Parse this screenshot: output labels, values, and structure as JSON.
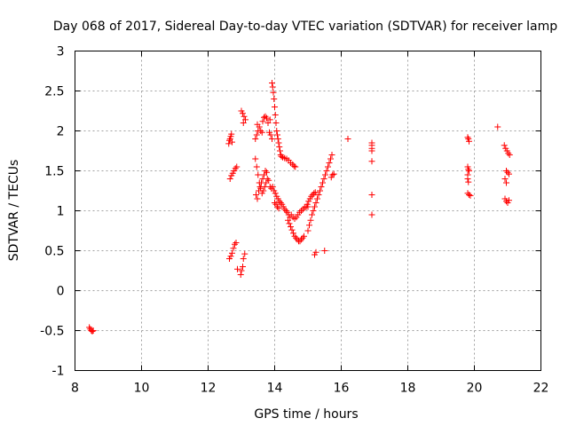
{
  "chart_data": {
    "type": "scatter",
    "title": "Day 068 of 2017, Sidereal Day-to-day VTEC variation (SDTVAR) for receiver lamp",
    "xlabel": "GPS time / hours",
    "ylabel": "SDTVAR / TECUs",
    "xlim": [
      8,
      22
    ],
    "ylim": [
      -1,
      3
    ],
    "xticks": [
      8,
      10,
      12,
      14,
      16,
      18,
      20,
      22
    ],
    "yticks": [
      -1,
      -0.5,
      0,
      0.5,
      1,
      1.5,
      2,
      2.5,
      3
    ],
    "xtick_labels": [
      "8",
      "10",
      "12",
      "14",
      "16",
      "18",
      "20",
      "22"
    ],
    "ytick_labels": [
      "-1",
      "-0.5",
      "0",
      "0.5",
      "1",
      "1.5",
      "2",
      "2.5",
      "3"
    ],
    "grid": true,
    "marker": "+",
    "color": "#ff0000",
    "series": [
      {
        "name": "SDTVAR",
        "points": [
          [
            8.43,
            -0.46
          ],
          [
            8.46,
            -0.48
          ],
          [
            8.49,
            -0.5
          ],
          [
            8.52,
            -0.51
          ],
          [
            8.55,
            -0.5
          ],
          [
            12.62,
            1.84
          ],
          [
            12.64,
            1.88
          ],
          [
            12.66,
            1.9
          ],
          [
            12.68,
            1.93
          ],
          [
            12.7,
            1.96
          ],
          [
            12.72,
            1.86
          ],
          [
            12.66,
            1.4
          ],
          [
            12.7,
            1.44
          ],
          [
            12.74,
            1.47
          ],
          [
            12.78,
            1.5
          ],
          [
            12.82,
            1.53
          ],
          [
            12.86,
            1.55
          ],
          [
            12.64,
            0.4
          ],
          [
            12.68,
            0.43
          ],
          [
            12.72,
            0.47
          ],
          [
            12.76,
            0.53
          ],
          [
            12.8,
            0.58
          ],
          [
            12.84,
            0.6
          ],
          [
            12.88,
            0.27
          ],
          [
            13.0,
            2.25
          ],
          [
            13.04,
            2.22
          ],
          [
            13.08,
            2.18
          ],
          [
            13.12,
            2.14
          ],
          [
            13.06,
            2.1
          ],
          [
            13.0,
            0.25
          ],
          [
            13.04,
            0.3
          ],
          [
            13.06,
            0.4
          ],
          [
            13.1,
            0.46
          ],
          [
            12.98,
            0.2
          ],
          [
            13.42,
            1.9
          ],
          [
            13.46,
            1.95
          ],
          [
            13.5,
            2.0
          ],
          [
            13.54,
            2.05
          ],
          [
            13.58,
            2.0
          ],
          [
            13.62,
            1.98
          ],
          [
            13.48,
            2.08
          ],
          [
            13.64,
            2.12
          ],
          [
            13.68,
            2.17
          ],
          [
            13.72,
            2.18
          ],
          [
            13.76,
            2.16
          ],
          [
            13.8,
            2.1
          ],
          [
            13.84,
            1.98
          ],
          [
            13.88,
            1.95
          ],
          [
            13.92,
            1.9
          ],
          [
            13.86,
            2.14
          ],
          [
            13.42,
            1.65
          ],
          [
            13.46,
            1.55
          ],
          [
            13.5,
            1.45
          ],
          [
            13.54,
            1.35
          ],
          [
            13.58,
            1.28
          ],
          [
            13.62,
            1.22
          ],
          [
            13.66,
            1.25
          ],
          [
            13.7,
            1.3
          ],
          [
            13.74,
            1.35
          ],
          [
            13.78,
            1.4
          ],
          [
            13.82,
            1.38
          ],
          [
            13.86,
            1.3
          ],
          [
            13.9,
            1.28
          ],
          [
            13.44,
            1.2
          ],
          [
            13.48,
            1.15
          ],
          [
            13.52,
            1.25
          ],
          [
            13.56,
            1.3
          ],
          [
            13.6,
            1.35
          ],
          [
            13.64,
            1.4
          ],
          [
            13.68,
            1.45
          ],
          [
            13.72,
            1.5
          ],
          [
            13.76,
            1.48
          ],
          [
            13.92,
            2.6
          ],
          [
            13.94,
            2.55
          ],
          [
            13.96,
            2.48
          ],
          [
            13.98,
            2.4
          ],
          [
            14.0,
            2.3
          ],
          [
            14.02,
            2.2
          ],
          [
            14.04,
            2.1
          ],
          [
            14.06,
            2.0
          ],
          [
            14.08,
            1.95
          ],
          [
            14.1,
            1.9
          ],
          [
            14.12,
            1.85
          ],
          [
            14.14,
            1.8
          ],
          [
            14.16,
            1.75
          ],
          [
            14.18,
            1.7
          ],
          [
            14.2,
            1.68
          ],
          [
            14.24,
            1.67
          ],
          [
            14.3,
            1.66
          ],
          [
            14.36,
            1.65
          ],
          [
            14.42,
            1.63
          ],
          [
            14.48,
            1.6
          ],
          [
            14.54,
            1.58
          ],
          [
            14.58,
            1.56
          ],
          [
            14.62,
            1.55
          ],
          [
            13.94,
            1.3
          ],
          [
            13.98,
            1.25
          ],
          [
            14.02,
            1.22
          ],
          [
            14.06,
            1.18
          ],
          [
            14.1,
            1.15
          ],
          [
            14.14,
            1.12
          ],
          [
            14.18,
            1.1
          ],
          [
            14.22,
            1.08
          ],
          [
            14.26,
            1.05
          ],
          [
            14.3,
            1.02
          ],
          [
            14.34,
            1.0
          ],
          [
            14.38,
            0.98
          ],
          [
            14.42,
            0.95
          ],
          [
            14.46,
            0.92
          ],
          [
            14.0,
            1.1
          ],
          [
            14.04,
            1.08
          ],
          [
            14.08,
            1.05
          ],
          [
            14.12,
            1.03
          ],
          [
            14.4,
            0.88
          ],
          [
            14.44,
            0.84
          ],
          [
            14.48,
            0.8
          ],
          [
            14.52,
            0.76
          ],
          [
            14.56,
            0.72
          ],
          [
            14.6,
            0.68
          ],
          [
            14.64,
            0.66
          ],
          [
            14.68,
            0.64
          ],
          [
            14.72,
            0.62
          ],
          [
            14.76,
            0.62
          ],
          [
            14.8,
            0.64
          ],
          [
            14.84,
            0.66
          ],
          [
            14.88,
            0.68
          ],
          [
            14.5,
            0.95
          ],
          [
            14.55,
            0.92
          ],
          [
            14.6,
            0.9
          ],
          [
            14.65,
            0.92
          ],
          [
            14.7,
            0.95
          ],
          [
            14.75,
            0.98
          ],
          [
            14.8,
            1.0
          ],
          [
            14.85,
            1.02
          ],
          [
            14.9,
            1.04
          ],
          [
            14.95,
            1.05
          ],
          [
            15.0,
            1.05
          ],
          [
            14.98,
            1.08
          ],
          [
            15.02,
            1.12
          ],
          [
            15.06,
            1.15
          ],
          [
            15.1,
            1.18
          ],
          [
            15.14,
            1.2
          ],
          [
            15.18,
            1.22
          ],
          [
            15.22,
            1.23
          ],
          [
            15.0,
            0.75
          ],
          [
            15.04,
            0.82
          ],
          [
            15.08,
            0.88
          ],
          [
            15.12,
            0.95
          ],
          [
            15.16,
            1.0
          ],
          [
            15.2,
            1.05
          ],
          [
            15.24,
            1.1
          ],
          [
            15.28,
            1.15
          ],
          [
            15.32,
            1.2
          ],
          [
            15.36,
            1.25
          ],
          [
            15.4,
            1.3
          ],
          [
            15.44,
            1.35
          ],
          [
            15.48,
            1.4
          ],
          [
            15.52,
            1.45
          ],
          [
            15.56,
            1.5
          ],
          [
            15.6,
            1.55
          ],
          [
            15.64,
            1.6
          ],
          [
            15.68,
            1.65
          ],
          [
            15.72,
            1.7
          ],
          [
            15.2,
            0.45
          ],
          [
            15.24,
            0.48
          ],
          [
            15.5,
            0.5
          ],
          [
            15.7,
            1.42
          ],
          [
            15.74,
            1.45
          ],
          [
            15.78,
            1.46
          ],
          [
            16.2,
            1.9
          ],
          [
            16.92,
            1.85
          ],
          [
            16.92,
            1.82
          ],
          [
            16.92,
            1.78
          ],
          [
            16.92,
            1.75
          ],
          [
            16.92,
            1.62
          ],
          [
            16.92,
            1.2
          ],
          [
            16.92,
            0.95
          ],
          [
            19.8,
            1.92
          ],
          [
            19.82,
            1.9
          ],
          [
            19.84,
            1.87
          ],
          [
            19.8,
            1.55
          ],
          [
            19.82,
            1.52
          ],
          [
            19.84,
            1.5
          ],
          [
            19.8,
            1.45
          ],
          [
            19.8,
            1.4
          ],
          [
            19.82,
            1.36
          ],
          [
            19.8,
            1.22
          ],
          [
            19.84,
            1.2
          ],
          [
            19.88,
            1.19
          ],
          [
            20.7,
            2.05
          ],
          [
            20.9,
            1.82
          ],
          [
            20.94,
            1.78
          ],
          [
            20.98,
            1.75
          ],
          [
            21.02,
            1.72
          ],
          [
            21.06,
            1.7
          ],
          [
            20.96,
            1.5
          ],
          [
            21.0,
            1.48
          ],
          [
            21.04,
            1.46
          ],
          [
            20.92,
            1.4
          ],
          [
            20.96,
            1.35
          ],
          [
            20.92,
            1.15
          ],
          [
            20.96,
            1.12
          ],
          [
            21.0,
            1.1
          ],
          [
            21.04,
            1.13
          ]
        ]
      }
    ]
  }
}
